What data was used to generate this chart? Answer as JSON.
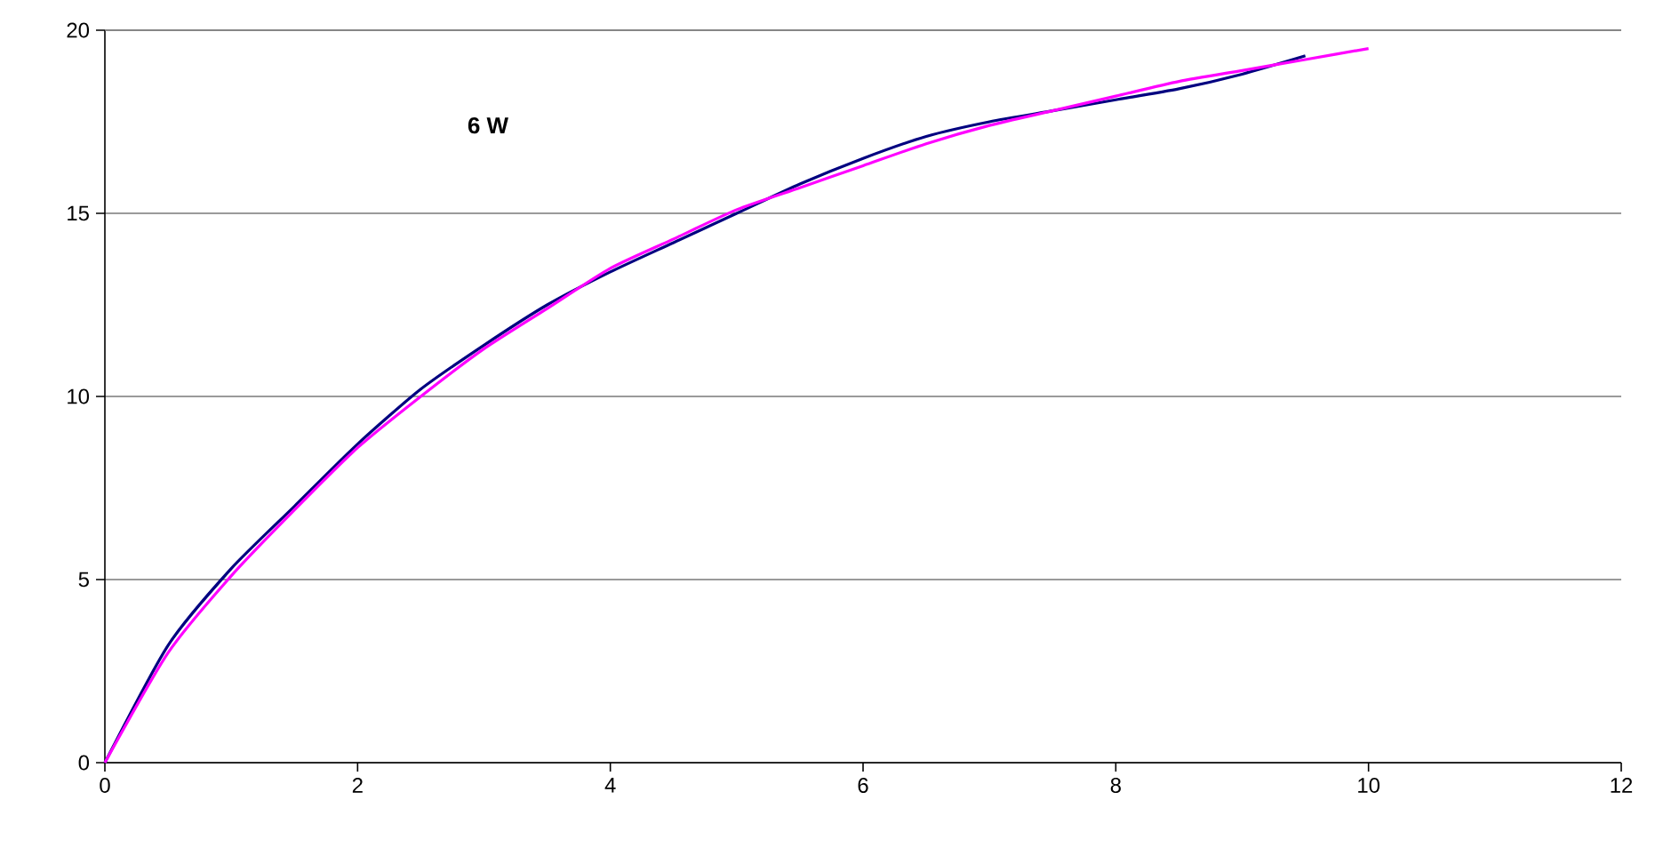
{
  "chart_data": {
    "type": "line",
    "annotations": [
      "6 W"
    ],
    "xlim": [
      0,
      12
    ],
    "xticks": [
      0,
      2,
      4,
      6,
      8,
      10,
      12
    ],
    "ylim": [
      0,
      20
    ],
    "yticks": [
      0,
      5,
      10,
      15,
      20
    ],
    "grid": "y",
    "marker": "none",
    "line_style": "solid",
    "series": [
      {
        "color": "#000080",
        "x": [
          0,
          0.5,
          1,
          1.5,
          2,
          2.5,
          3,
          3.5,
          4,
          4.5,
          5,
          5.5,
          6,
          6.5,
          7,
          7.5,
          8,
          8.5,
          9,
          9.5
        ],
        "values": [
          0,
          3.2,
          5.3,
          7.0,
          8.7,
          10.2,
          11.4,
          12.5,
          13.4,
          14.2,
          15.0,
          15.8,
          16.5,
          17.1,
          17.5,
          17.8,
          18.1,
          18.4,
          18.8,
          19.3
        ]
      },
      {
        "color": "#ff00ff",
        "x": [
          0,
          0.5,
          1,
          1.5,
          2,
          2.5,
          3,
          3.5,
          4,
          4.5,
          5,
          5.5,
          6,
          6.5,
          7,
          7.5,
          8,
          8.5,
          9,
          9.5,
          10
        ],
        "values": [
          0,
          3.0,
          5.1,
          6.9,
          8.6,
          10.0,
          11.3,
          12.4,
          13.5,
          14.3,
          15.1,
          15.7,
          16.3,
          16.9,
          17.4,
          17.8,
          18.2,
          18.6,
          18.9,
          19.2,
          19.5
        ]
      }
    ]
  }
}
